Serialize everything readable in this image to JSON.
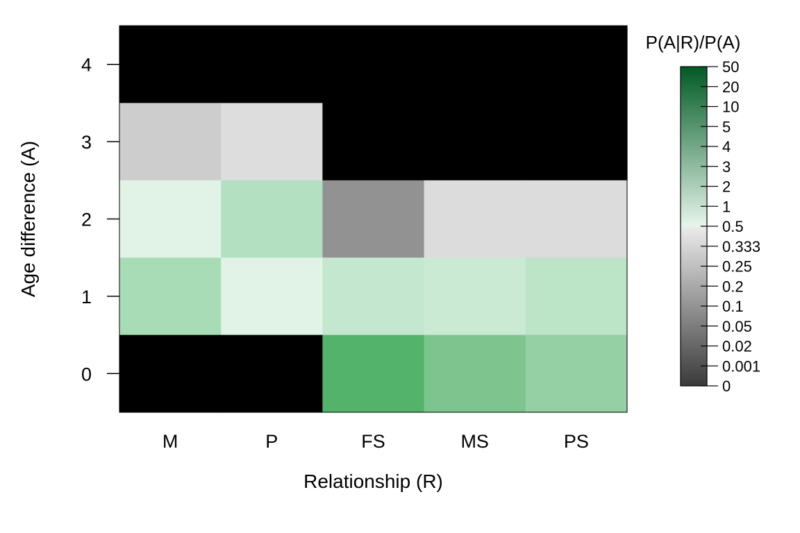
{
  "chart_data": {
    "type": "heatmap",
    "title": "",
    "xlabel": "Relationship (R)",
    "ylabel": "Age difference (A)",
    "x_categories": [
      "M",
      "P",
      "FS",
      "MS",
      "PS"
    ],
    "y_categories": [
      "0",
      "1",
      "2",
      "3",
      "4"
    ],
    "cells": [
      {
        "x": "M",
        "y": "4",
        "value": 0,
        "color": "#000000"
      },
      {
        "x": "P",
        "y": "4",
        "value": 0,
        "color": "#000000"
      },
      {
        "x": "FS",
        "y": "4",
        "value": 0,
        "color": "#000000"
      },
      {
        "x": "MS",
        "y": "4",
        "value": 0,
        "color": "#000000"
      },
      {
        "x": "PS",
        "y": "4",
        "value": 0,
        "color": "#000000"
      },
      {
        "x": "M",
        "y": "3",
        "value": 0.25,
        "color": "#cdcdcd"
      },
      {
        "x": "P",
        "y": "3",
        "value": 0.5,
        "color": "#dddddd"
      },
      {
        "x": "FS",
        "y": "3",
        "value": 0,
        "color": "#000000"
      },
      {
        "x": "MS",
        "y": "3",
        "value": 0,
        "color": "#000000"
      },
      {
        "x": "PS",
        "y": "3",
        "value": 0,
        "color": "#000000"
      },
      {
        "x": "M",
        "y": "2",
        "value": 1.7,
        "color": "#e0f3e6"
      },
      {
        "x": "P",
        "y": "2",
        "value": 3.2,
        "color": "#b3e0c0"
      },
      {
        "x": "FS",
        "y": "2",
        "value": 0.1,
        "color": "#929292"
      },
      {
        "x": "MS",
        "y": "2",
        "value": 0.5,
        "color": "#dcdcdc"
      },
      {
        "x": "PS",
        "y": "2",
        "value": 0.5,
        "color": "#dcdcdc"
      },
      {
        "x": "M",
        "y": "1",
        "value": 3.4,
        "color": "#a8dcb6"
      },
      {
        "x": "P",
        "y": "1",
        "value": 1.7,
        "color": "#e0f3e6"
      },
      {
        "x": "FS",
        "y": "1",
        "value": 2.5,
        "color": "#c4e8cf"
      },
      {
        "x": "MS",
        "y": "1",
        "value": 2.4,
        "color": "#cbead4"
      },
      {
        "x": "PS",
        "y": "1",
        "value": 2.7,
        "color": "#bce4c7"
      },
      {
        "x": "M",
        "y": "0",
        "value": 0,
        "color": "#000000"
      },
      {
        "x": "P",
        "y": "0",
        "value": 0,
        "color": "#000000"
      },
      {
        "x": "FS",
        "y": "0",
        "value": 6,
        "color": "#54b36b"
      },
      {
        "x": "MS",
        "y": "0",
        "value": 4.6,
        "color": "#7dc48f"
      },
      {
        "x": "PS",
        "y": "0",
        "value": 3.9,
        "color": "#94d0a3"
      }
    ],
    "legend": {
      "title": "P(A|R)/P(A)",
      "placement": "right",
      "labels": [
        "0",
        "0.001",
        "0.02",
        "0.05",
        "0.1",
        "0.2",
        "0.25",
        "0.333",
        "0.5",
        "1",
        "2",
        "3",
        "4",
        "5",
        "10",
        "20",
        "50"
      ],
      "color_low": "#3a3a3a",
      "color_mid_gray": "#ececec",
      "color_mid": "#ffffff",
      "color_mid_green": "#e6f5ea",
      "color_high": "#005a24"
    }
  }
}
